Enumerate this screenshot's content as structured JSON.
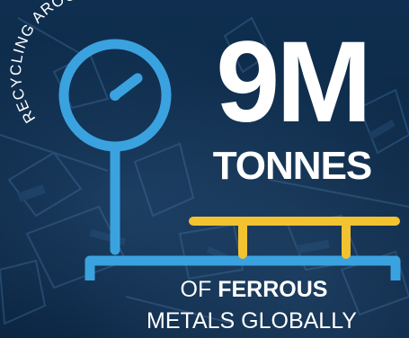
{
  "headline": {
    "prefix": "RECYCLING AROUND",
    "number": "9M",
    "unit": "TONNES"
  },
  "caption": {
    "line1_pre": "OF ",
    "line1_strong": "FERROUS",
    "line2": "METALS GLOBALLY"
  },
  "colors": {
    "background": "#0d2a47",
    "scale_blue": "#3ba2e0",
    "platform_yellow": "#f2c230",
    "text": "#ffffff"
  },
  "icons": {
    "scale": "weighing-scale-icon"
  }
}
